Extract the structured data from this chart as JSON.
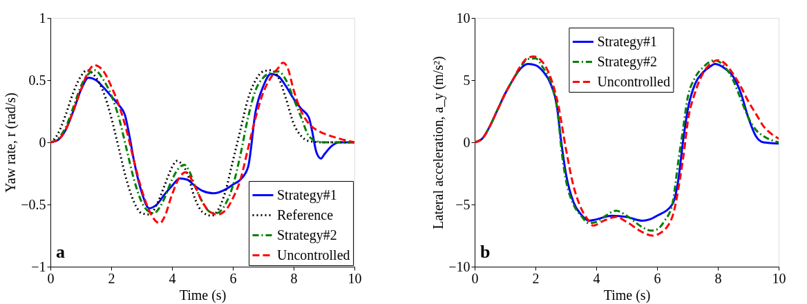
{
  "chart_data": [
    {
      "type": "line",
      "xlabel": "Time (s)",
      "ylabel": "Yaw rate, r (rad/s)",
      "xlim": [
        0,
        10
      ],
      "ylim": [
        -1,
        1
      ],
      "xticks": [
        0,
        2,
        4,
        6,
        8,
        10
      ],
      "yticks": [
        -1,
        -0.5,
        0,
        0.5,
        1
      ],
      "legend": "bottom right",
      "annotations": [
        "a"
      ],
      "series": [
        {
          "name": "Strategy#1",
          "color": "#0000ff",
          "line_style": "solid",
          "x": [
            0,
            0.25,
            0.5,
            0.75,
            1.0,
            1.25,
            1.5,
            1.75,
            2.0,
            2.25,
            2.45,
            2.6,
            2.75,
            3.0,
            3.25,
            3.5,
            3.75,
            4.0,
            4.25,
            4.5,
            4.75,
            5.0,
            5.35,
            5.75,
            6.0,
            6.25,
            6.5,
            6.75,
            7.0,
            7.25,
            7.5,
            7.75,
            8.0,
            8.25,
            8.5,
            8.6,
            8.75,
            8.9,
            9.0,
            9.25,
            9.5,
            10
          ],
          "values": [
            0,
            0.02,
            0.1,
            0.25,
            0.42,
            0.52,
            0.5,
            0.44,
            0.37,
            0.3,
            0.22,
            0.05,
            -0.15,
            -0.4,
            -0.53,
            -0.5,
            -0.42,
            -0.35,
            -0.29,
            -0.3,
            -0.35,
            -0.39,
            -0.41,
            -0.38,
            -0.34,
            -0.3,
            -0.2,
            0.25,
            0.45,
            0.55,
            0.53,
            0.45,
            0.35,
            0.27,
            0.2,
            0.1,
            -0.08,
            -0.13,
            -0.1,
            -0.03,
            0,
            0
          ]
        },
        {
          "name": "Reference",
          "color": "#000000",
          "line_style": "dotted",
          "x": [
            0,
            0.25,
            0.5,
            0.75,
            1.0,
            1.2,
            1.5,
            1.75,
            2.0,
            2.25,
            2.5,
            2.75,
            3.0,
            3.25,
            3.5,
            3.75,
            4.0,
            4.15,
            4.5,
            4.75,
            5.0,
            5.3,
            5.5,
            5.75,
            6.0,
            6.25,
            6.5,
            6.75,
            7.0,
            7.25,
            7.5,
            7.75,
            8.0,
            8.25,
            8.5,
            9.0,
            10
          ],
          "values": [
            0,
            0.07,
            0.22,
            0.4,
            0.53,
            0.58,
            0.52,
            0.4,
            0.2,
            -0.05,
            -0.3,
            -0.48,
            -0.57,
            -0.58,
            -0.5,
            -0.35,
            -0.2,
            -0.15,
            -0.25,
            -0.45,
            -0.56,
            -0.59,
            -0.55,
            -0.4,
            -0.15,
            0.1,
            0.35,
            0.5,
            0.57,
            0.58,
            0.52,
            0.35,
            0.15,
            0.05,
            0.01,
            0,
            0
          ]
        },
        {
          "name": "Strategy#2",
          "color": "#007f00",
          "line_style": "dashdot",
          "x": [
            0,
            0.25,
            0.5,
            0.75,
            1.0,
            1.25,
            1.45,
            1.75,
            2.0,
            2.25,
            2.5,
            2.75,
            3.0,
            3.25,
            3.4,
            3.6,
            3.75,
            4.0,
            4.25,
            4.4,
            4.6,
            4.75,
            5.0,
            5.25,
            5.45,
            5.75,
            6.0,
            6.25,
            6.5,
            6.75,
            7.0,
            7.25,
            7.5,
            7.75,
            8.0,
            8.25,
            8.5,
            8.75,
            9.0,
            10
          ],
          "values": [
            0,
            0.03,
            0.12,
            0.28,
            0.45,
            0.55,
            0.58,
            0.5,
            0.38,
            0.2,
            -0.05,
            -0.3,
            -0.48,
            -0.56,
            -0.57,
            -0.52,
            -0.45,
            -0.3,
            -0.2,
            -0.18,
            -0.25,
            -0.35,
            -0.48,
            -0.56,
            -0.57,
            -0.5,
            -0.35,
            -0.1,
            0.2,
            0.42,
            0.52,
            0.56,
            0.57,
            0.5,
            0.35,
            0.2,
            0.05,
            0.01,
            0,
            0
          ]
        },
        {
          "name": "Uncontrolled",
          "color": "#ff0000",
          "line_style": "dashed",
          "x": [
            0,
            0.25,
            0.5,
            0.75,
            1.0,
            1.25,
            1.45,
            1.75,
            2.0,
            2.25,
            2.5,
            2.75,
            3.0,
            3.25,
            3.45,
            3.6,
            3.75,
            4.0,
            4.25,
            4.45,
            4.75,
            5.0,
            5.25,
            5.5,
            5.75,
            6.0,
            6.25,
            6.5,
            6.75,
            7.0,
            7.25,
            7.5,
            7.65,
            7.8,
            8.0,
            8.25,
            8.5,
            8.75,
            9.0,
            9.5,
            10
          ],
          "values": [
            0,
            0.02,
            0.1,
            0.25,
            0.42,
            0.57,
            0.62,
            0.57,
            0.45,
            0.3,
            0.1,
            -0.15,
            -0.38,
            -0.55,
            -0.63,
            -0.65,
            -0.6,
            -0.42,
            -0.28,
            -0.24,
            -0.35,
            -0.48,
            -0.56,
            -0.58,
            -0.55,
            -0.45,
            -0.3,
            -0.05,
            0.2,
            0.4,
            0.52,
            0.6,
            0.64,
            0.6,
            0.42,
            0.25,
            0.15,
            0.1,
            0.07,
            0.03,
            0
          ]
        }
      ]
    },
    {
      "type": "line",
      "xlabel": "Time (s)",
      "ylabel": "Lateral acceleration,  a_y  (m/s²)",
      "xlim": [
        0,
        10
      ],
      "ylim": [
        -10,
        10
      ],
      "xticks": [
        0,
        2,
        4,
        6,
        8,
        10
      ],
      "yticks": [
        -10,
        -5,
        0,
        5,
        10
      ],
      "legend": "top",
      "annotations": [
        "b"
      ],
      "series": [
        {
          "name": "Strategy#1",
          "color": "#0000ff",
          "line_style": "solid",
          "x": [
            0,
            0.25,
            0.5,
            0.75,
            1.0,
            1.25,
            1.5,
            1.75,
            2.0,
            2.25,
            2.5,
            2.7,
            2.85,
            3.0,
            3.25,
            3.5,
            3.75,
            4.0,
            4.5,
            5.0,
            5.5,
            5.75,
            6.0,
            6.5,
            6.7,
            6.85,
            7.0,
            7.25,
            7.5,
            7.75,
            7.9,
            8.25,
            8.5,
            8.75,
            9.0,
            9.25,
            9.5,
            10
          ],
          "values": [
            0,
            0.3,
            1.3,
            2.6,
            3.9,
            5.0,
            5.9,
            6.3,
            6.2,
            5.7,
            4.7,
            3.0,
            0,
            -2.5,
            -4.8,
            -5.8,
            -6.3,
            -6.2,
            -5.9,
            -6.0,
            -6.3,
            -6.2,
            -5.9,
            -5,
            -3,
            0,
            2.5,
            4.7,
            5.6,
            6.1,
            6.3,
            5.9,
            5.3,
            4.0,
            2.0,
            0.5,
            0,
            -0.1
          ]
        },
        {
          "name": "Strategy#2",
          "color": "#007f00",
          "line_style": "dashdot",
          "x": [
            0,
            0.25,
            0.5,
            0.75,
            1.0,
            1.25,
            1.5,
            1.75,
            2.0,
            2.25,
            2.5,
            2.75,
            2.85,
            3.0,
            3.25,
            3.5,
            3.75,
            4.0,
            4.25,
            4.65,
            5.0,
            5.5,
            5.8,
            6.0,
            6.25,
            6.5,
            6.7,
            6.85,
            7.0,
            7.25,
            7.5,
            7.9,
            8.25,
            8.5,
            8.75,
            9.0,
            9.25,
            9.5,
            10
          ],
          "values": [
            0,
            0.3,
            1.3,
            2.6,
            3.9,
            5.0,
            6.0,
            6.7,
            6.75,
            6.0,
            4.8,
            2.0,
            -0.5,
            -3,
            -5,
            -5.9,
            -6.5,
            -6.4,
            -6.0,
            -5.5,
            -5.9,
            -6.8,
            -7.1,
            -7.0,
            -6.3,
            -5,
            -1.5,
            1,
            3.5,
            5.2,
            6.0,
            6.6,
            6.0,
            5.0,
            3.5,
            2.0,
            1.0,
            0.5,
            0
          ]
        },
        {
          "name": "Uncontrolled",
          "color": "#ff0000",
          "line_style": "dashed",
          "x": [
            0,
            0.25,
            0.5,
            0.75,
            1.0,
            1.25,
            1.5,
            1.75,
            1.95,
            2.25,
            2.5,
            2.75,
            3.0,
            3.25,
            3.5,
            3.75,
            3.9,
            4.25,
            4.65,
            5.0,
            5.5,
            5.85,
            6.1,
            6.5,
            6.75,
            6.9,
            7.0,
            7.25,
            7.5,
            7.75,
            8.0,
            8.25,
            8.5,
            8.75,
            9.0,
            9.25,
            9.5,
            9.75,
            10
          ],
          "values": [
            0,
            0.3,
            1.3,
            2.6,
            3.9,
            5.0,
            6.1,
            6.8,
            6.9,
            6.4,
            5.2,
            3.0,
            -0.5,
            -3.5,
            -5.3,
            -6.3,
            -6.7,
            -6.3,
            -6.0,
            -6.4,
            -7.2,
            -7.5,
            -7.3,
            -6,
            -3,
            -0.5,
            1.5,
            4.0,
            5.5,
            6.3,
            6.6,
            6.3,
            5.5,
            4.5,
            3.3,
            2.3,
            1.3,
            0.7,
            0.3
          ]
        }
      ]
    }
  ]
}
